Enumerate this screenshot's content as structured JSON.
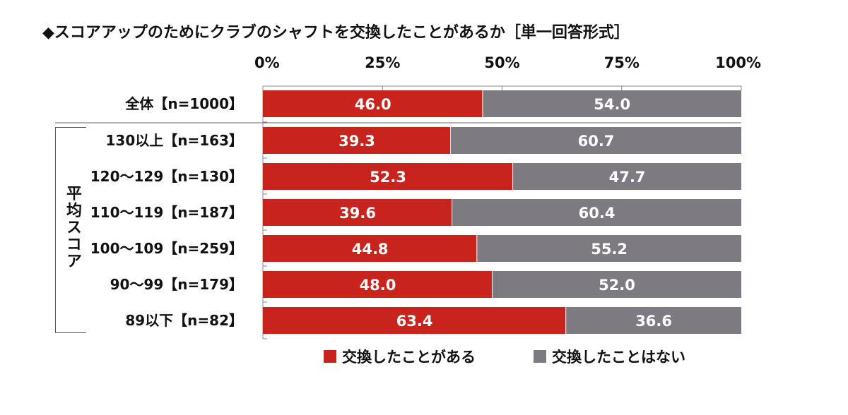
{
  "title": "◆スコアアップのためにクラブのシャフトを交換したことがあるか［単一回答形式］",
  "group_label": "平均スコア",
  "colors": {
    "exchanged": "#c8241d",
    "not_exchanged": "#7d7a82",
    "axis": "#888888"
  },
  "chart_data": {
    "type": "bar",
    "orientation": "horizontal",
    "stacked": true,
    "percent": true,
    "xlim": [
      0,
      100
    ],
    "ticks": [
      "0%",
      "25%",
      "50%",
      "75%",
      "100%"
    ],
    "tick_values": [
      0,
      25,
      50,
      75,
      100
    ],
    "categories": [
      "全体【n=1000】",
      "130以上【n=163】",
      "120～129【n=130】",
      "110～119【n=187】",
      "100～109【n=259】",
      "90～99【n=179】",
      "89以下【n=82】"
    ],
    "series": [
      {
        "name": "交換したことがある",
        "values": [
          46.0,
          39.3,
          52.3,
          39.6,
          44.8,
          48.0,
          63.4
        ],
        "labels": [
          "46.0",
          "39.3",
          "52.3",
          "39.6",
          "44.8",
          "48.0",
          "63.4"
        ],
        "color": "#c8241d"
      },
      {
        "name": "交換したことはない",
        "values": [
          54.0,
          60.7,
          47.7,
          60.4,
          55.2,
          52.0,
          36.6
        ],
        "labels": [
          "54.0",
          "60.7",
          "47.7",
          "60.4",
          "55.2",
          "52.0",
          "36.6"
        ],
        "color": "#7d7a82"
      }
    ],
    "legend_position": "bottom"
  }
}
